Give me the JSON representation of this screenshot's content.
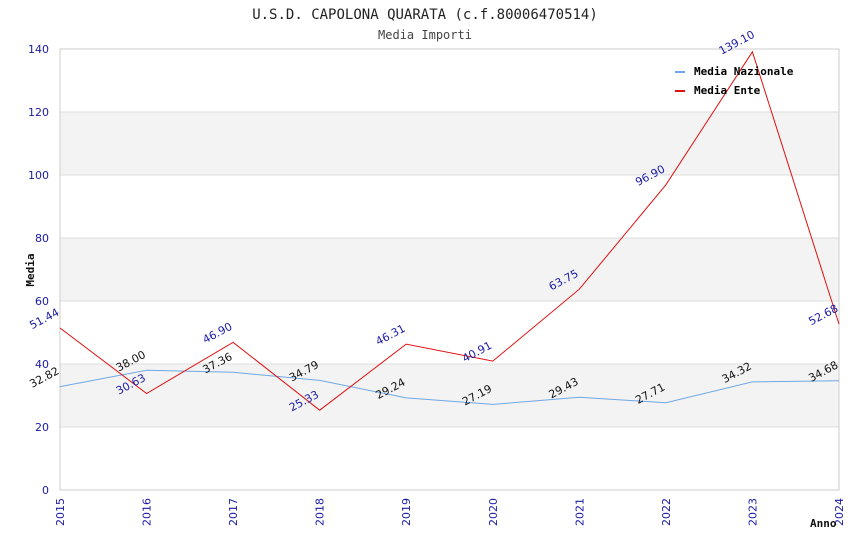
{
  "chart_data": {
    "type": "line",
    "title": "U.S.D. CAPOLONA QUARATA (c.f.80006470514)",
    "subtitle": "Media Importi",
    "xlabel": "Anno",
    "ylabel": "Media",
    "ylim": [
      0,
      140
    ],
    "yticks": [
      0,
      20,
      40,
      60,
      80,
      100,
      120,
      140
    ],
    "yticks_labels": [
      "0",
      "20",
      "40",
      "60",
      "80",
      "100",
      "120",
      "140"
    ],
    "categories": [
      "2015",
      "2016",
      "2017",
      "2018",
      "2019",
      "2020",
      "2021",
      "2022",
      "2023",
      "2024"
    ],
    "legend_position": "top-right",
    "series": [
      {
        "name": "Media Nazionale",
        "color": "#6fa8e6",
        "label_color": "#111111",
        "values": [
          32.82,
          38.0,
          37.36,
          34.79,
          29.24,
          27.19,
          29.43,
          27.71,
          34.32,
          34.68
        ],
        "labels": [
          "32.82",
          "38.00",
          "37.36",
          "34.79",
          "29.24",
          "27.19",
          "29.43",
          "27.71",
          "34.32",
          "34.68"
        ]
      },
      {
        "name": "Media Ente",
        "color": "#e01010",
        "label_color": "#1a1aa6",
        "values": [
          51.44,
          30.63,
          46.9,
          25.33,
          46.31,
          40.91,
          63.75,
          96.9,
          139.1,
          52.68
        ],
        "labels": [
          "51.44",
          "30.63",
          "46.90",
          "25.33",
          "46.31",
          "40.91",
          "63.75",
          "96.90",
          "139.10",
          "52.68"
        ]
      }
    ]
  }
}
